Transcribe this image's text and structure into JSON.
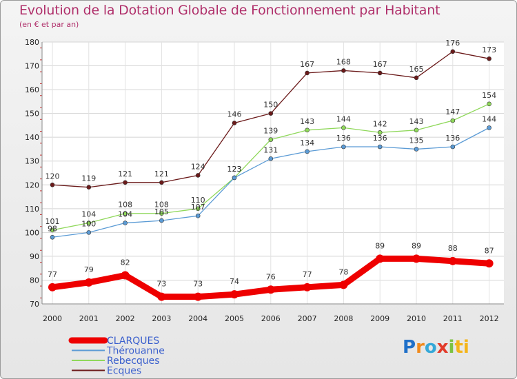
{
  "title": "Evolution de la Dotation Globale de Fonctionnement par Habitant",
  "subtitle": "(en € et par an)",
  "logo": [
    "P",
    "r",
    "o",
    "x",
    "i",
    "ti"
  ],
  "chart_data": {
    "type": "line",
    "title": "Evolution de la Dotation Globale de Fonctionnement par Habitant",
    "subtitle": "(en € et par an)",
    "xlabel": "",
    "ylabel": "",
    "ylim": [
      70,
      180
    ],
    "yticks": [
      "70",
      "80",
      "90",
      "100",
      "110",
      "120",
      "130",
      "140",
      "150",
      "160",
      "170",
      "180"
    ],
    "categories": [
      "2000",
      "2001",
      "2002",
      "2003",
      "2004",
      "2005",
      "2006",
      "2007",
      "2008",
      "2009",
      "2010",
      "2011",
      "2012"
    ],
    "legend_position": "bottom-left",
    "series": [
      {
        "name": "Ecques",
        "color": "#6b1a1a",
        "values": [
          120,
          119,
          121,
          121,
          124,
          146,
          150,
          167,
          168,
          167,
          165,
          176,
          173
        ]
      },
      {
        "name": "Rebecques",
        "color": "#8fd85a",
        "values": [
          101,
          104,
          108,
          108,
          110,
          123,
          139,
          143,
          144,
          142,
          143,
          147,
          154
        ]
      },
      {
        "name": "Thérouanne",
        "color": "#5b9bd5",
        "values": [
          98,
          100,
          104,
          105,
          107,
          123,
          131,
          134,
          136,
          136,
          135,
          136,
          144
        ]
      },
      {
        "name": "CLARQUES",
        "color": "#ee0000",
        "values": [
          77,
          79,
          82,
          73,
          73,
          74,
          76,
          77,
          78,
          89,
          89,
          88,
          87
        ]
      }
    ],
    "legend_order": [
      "CLARQUES",
      "Thérouanne",
      "Rebecques",
      "Ecques"
    ],
    "legend_text_color": "#3a5fcd"
  }
}
